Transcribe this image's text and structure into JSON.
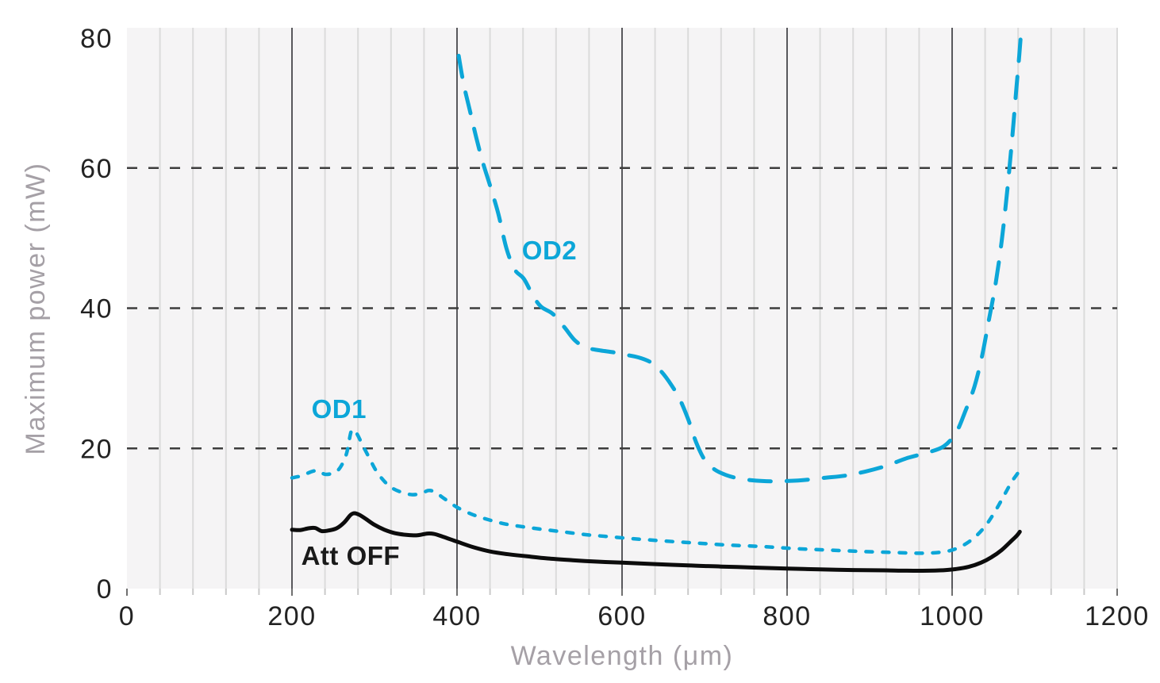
{
  "chart_data": {
    "type": "line",
    "title": "",
    "xlabel": "Wavelength (μm)",
    "ylabel": "Maximum power (mW)",
    "xlim": [
      0,
      1200
    ],
    "ylim": [
      0,
      80
    ],
    "x_ticks_major": [
      0,
      200,
      400,
      600,
      800,
      1000,
      1200
    ],
    "x_minor_step": 40,
    "x_dark_gridlines": [
      200,
      400,
      600,
      800,
      1000
    ],
    "y_ticks": [
      0,
      20,
      40,
      60,
      80
    ],
    "y_dashed_gridlines": [
      20,
      40,
      60
    ],
    "grid": "vertical-minor-and-major, horizontal-dashed",
    "legend_position": "inline-curve-labels",
    "styles": {
      "page_background": "#ffffff",
      "plot_background": "#f5f4f5",
      "grid_minor_color": "#dbdbdb",
      "grid_major_color": "#58585c",
      "dashed_grid_color": "#3d3d3d",
      "tick_minor_color": "#c9c9c9",
      "tick_major_color": "#707070",
      "tick_label_color": "#232323",
      "axis_title_color": "#a5a0a6",
      "accent_blue": "#0ca6d8",
      "curve_black": "#0c0c0c"
    },
    "series": [
      {
        "name": "OD2",
        "color": "#0ca6d8",
        "style": "long-dash",
        "stroke_width": 5,
        "points": [
          [
            402,
            76.0
          ],
          [
            408,
            72.0
          ],
          [
            416,
            68.0
          ],
          [
            424,
            64.0
          ],
          [
            432,
            60.5
          ],
          [
            440,
            57.5
          ],
          [
            450,
            53.5
          ],
          [
            460,
            48.5
          ],
          [
            470,
            45.5
          ],
          [
            481,
            44.2
          ],
          [
            492,
            41.8
          ],
          [
            502,
            40.2
          ],
          [
            516,
            39.2
          ],
          [
            530,
            37.3
          ],
          [
            543,
            35.4
          ],
          [
            556,
            34.4
          ],
          [
            572,
            34.0
          ],
          [
            590,
            33.7
          ],
          [
            607,
            33.3
          ],
          [
            622,
            32.9
          ],
          [
            636,
            32.2
          ],
          [
            648,
            30.9
          ],
          [
            660,
            29.0
          ],
          [
            670,
            27.0
          ],
          [
            680,
            24.2
          ],
          [
            690,
            20.8
          ],
          [
            700,
            18.4
          ],
          [
            712,
            17.0
          ],
          [
            726,
            16.2
          ],
          [
            742,
            15.7
          ],
          [
            762,
            15.4
          ],
          [
            782,
            15.3
          ],
          [
            802,
            15.35
          ],
          [
            822,
            15.5
          ],
          [
            845,
            15.8
          ],
          [
            870,
            16.1
          ],
          [
            895,
            16.7
          ],
          [
            920,
            17.5
          ],
          [
            945,
            18.6
          ],
          [
            970,
            19.4
          ],
          [
            990,
            20.3
          ],
          [
            1005,
            22.3
          ],
          [
            1016,
            25.3
          ],
          [
            1027,
            28.8
          ],
          [
            1036,
            33.0
          ],
          [
            1044,
            38.0
          ],
          [
            1052,
            43.0
          ],
          [
            1060,
            49.5
          ],
          [
            1067,
            57.0
          ],
          [
            1073,
            64.5
          ],
          [
            1078,
            71.5
          ],
          [
            1081,
            75.5
          ],
          [
            1083,
            78.5
          ]
        ]
      },
      {
        "name": "OD1",
        "color": "#0ca6d8",
        "style": "short-dash",
        "stroke_width": 4.5,
        "points": [
          [
            200,
            15.8
          ],
          [
            212,
            16.1
          ],
          [
            224,
            16.7
          ],
          [
            232,
            16.8
          ],
          [
            240,
            16.3
          ],
          [
            250,
            16.5
          ],
          [
            258,
            17.2
          ],
          [
            266,
            19.2
          ],
          [
            272,
            22.5
          ],
          [
            278,
            22.2
          ],
          [
            285,
            20.6
          ],
          [
            293,
            18.8
          ],
          [
            302,
            16.8
          ],
          [
            312,
            15.3
          ],
          [
            322,
            14.3
          ],
          [
            334,
            13.7
          ],
          [
            346,
            13.4
          ],
          [
            357,
            13.6
          ],
          [
            366,
            14.0
          ],
          [
            374,
            13.7
          ],
          [
            385,
            12.8
          ],
          [
            400,
            11.6
          ],
          [
            418,
            10.6
          ],
          [
            436,
            9.9
          ],
          [
            455,
            9.3
          ],
          [
            475,
            8.9
          ],
          [
            500,
            8.5
          ],
          [
            528,
            8.1
          ],
          [
            556,
            7.7
          ],
          [
            585,
            7.4
          ],
          [
            615,
            7.1
          ],
          [
            650,
            6.8
          ],
          [
            690,
            6.5
          ],
          [
            730,
            6.2
          ],
          [
            770,
            6.0
          ],
          [
            810,
            5.7
          ],
          [
            850,
            5.5
          ],
          [
            890,
            5.3
          ],
          [
            930,
            5.15
          ],
          [
            965,
            5.05
          ],
          [
            990,
            5.25
          ],
          [
            1005,
            5.7
          ],
          [
            1018,
            6.5
          ],
          [
            1030,
            7.6
          ],
          [
            1042,
            9.2
          ],
          [
            1053,
            11.2
          ],
          [
            1063,
            13.3
          ],
          [
            1072,
            15.2
          ],
          [
            1078,
            16.2
          ],
          [
            1082,
            16.9
          ]
        ]
      },
      {
        "name": "Att OFF",
        "color": "#0c0c0c",
        "style": "solid",
        "stroke_width": 5,
        "points": [
          [
            200,
            8.4
          ],
          [
            210,
            8.35
          ],
          [
            220,
            8.6
          ],
          [
            228,
            8.65
          ],
          [
            236,
            8.2
          ],
          [
            245,
            8.3
          ],
          [
            254,
            8.6
          ],
          [
            263,
            9.4
          ],
          [
            271,
            10.5
          ],
          [
            276,
            10.75
          ],
          [
            282,
            10.5
          ],
          [
            290,
            9.9
          ],
          [
            300,
            9.1
          ],
          [
            312,
            8.4
          ],
          [
            325,
            7.9
          ],
          [
            340,
            7.65
          ],
          [
            352,
            7.6
          ],
          [
            364,
            7.85
          ],
          [
            372,
            7.8
          ],
          [
            383,
            7.4
          ],
          [
            400,
            6.7
          ],
          [
            420,
            5.9
          ],
          [
            440,
            5.3
          ],
          [
            462,
            4.9
          ],
          [
            485,
            4.6
          ],
          [
            510,
            4.3
          ],
          [
            540,
            4.05
          ],
          [
            570,
            3.85
          ],
          [
            600,
            3.7
          ],
          [
            640,
            3.5
          ],
          [
            680,
            3.3
          ],
          [
            720,
            3.15
          ],
          [
            760,
            3.0
          ],
          [
            800,
            2.85
          ],
          [
            840,
            2.75
          ],
          [
            880,
            2.65
          ],
          [
            920,
            2.6
          ],
          [
            955,
            2.55
          ],
          [
            985,
            2.6
          ],
          [
            1005,
            2.8
          ],
          [
            1020,
            3.1
          ],
          [
            1035,
            3.7
          ],
          [
            1048,
            4.5
          ],
          [
            1060,
            5.5
          ],
          [
            1070,
            6.6
          ],
          [
            1078,
            7.5
          ],
          [
            1082,
            8.1
          ]
        ]
      }
    ],
    "annotations": [
      {
        "text": "OD2",
        "x": 512,
        "y": 48.3,
        "color": "#0ca6d8",
        "bold": true
      },
      {
        "text": "OD1",
        "x": 257,
        "y": 25.7,
        "color": "#0ca6d8",
        "bold": true
      },
      {
        "text": "Att OFF",
        "x": 271,
        "y": 4.75,
        "color": "#1a1a1a",
        "bold": true
      }
    ]
  }
}
